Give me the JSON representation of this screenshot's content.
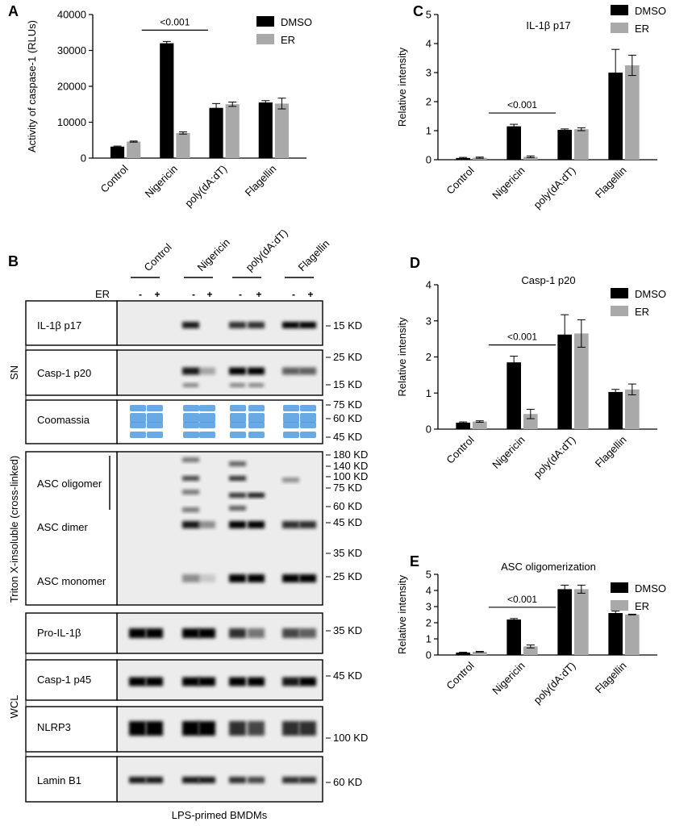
{
  "panel_labels": {
    "A": "A",
    "B": "B",
    "C": "C",
    "D": "D",
    "E": "E"
  },
  "colors": {
    "dmso": "#000000",
    "er": "#a9a9a9",
    "coomassie": "#4f9be0"
  },
  "chart_data": [
    {
      "panel": "A",
      "type": "bar",
      "categories": [
        "Control",
        "Nigericin",
        "poly(dA:dT)",
        "Flagellin"
      ],
      "ylabel": "Activity of caspase-1 (RLUs)",
      "ylim": [
        0,
        40000
      ],
      "yticks": [
        0,
        10000,
        20000,
        30000,
        40000
      ],
      "legend": "top-right",
      "series": [
        {
          "name": "DMSO",
          "values": [
            3200,
            32000,
            14000,
            15500
          ],
          "errors": [
            150,
            500,
            1200,
            500
          ]
        },
        {
          "name": "ER",
          "values": [
            4600,
            7000,
            15000,
            15200
          ],
          "errors": [
            150,
            300,
            600,
            1500
          ]
        }
      ],
      "annotation": {
        "text": "<0.001",
        "category": "Nigericin"
      }
    },
    {
      "panel": "C",
      "type": "bar",
      "title": "IL-1β p17",
      "categories": [
        "Control",
        "Nigericin",
        "poly(dA:dT)",
        "Flagellin"
      ],
      "ylabel": "Relative intensity",
      "ylim": [
        0,
        5
      ],
      "yticks": [
        0,
        1,
        2,
        3,
        4,
        5
      ],
      "legend": "top-right",
      "series": [
        {
          "name": "DMSO",
          "values": [
            0.06,
            1.15,
            1.03,
            3.0
          ],
          "errors": [
            0.02,
            0.07,
            0.03,
            0.8
          ]
        },
        {
          "name": "ER",
          "values": [
            0.07,
            0.1,
            1.05,
            3.25
          ],
          "errors": [
            0.02,
            0.03,
            0.05,
            0.35
          ]
        }
      ],
      "annotation": {
        "text": "<0.001",
        "category": "Nigericin"
      }
    },
    {
      "panel": "D",
      "type": "bar",
      "title": "Casp-1 p20",
      "categories": [
        "Control",
        "Nigericin",
        "poly(dA:dT)",
        "Flagellin"
      ],
      "ylabel": "Relative intensity",
      "ylim": [
        0,
        4
      ],
      "yticks": [
        0,
        1,
        2,
        3,
        4
      ],
      "legend": "top-right",
      "series": [
        {
          "name": "DMSO",
          "values": [
            0.18,
            1.85,
            2.62,
            1.03
          ],
          "errors": [
            0.02,
            0.17,
            0.55,
            0.07
          ]
        },
        {
          "name": "ER",
          "values": [
            0.21,
            0.42,
            2.65,
            1.1
          ],
          "errors": [
            0.02,
            0.13,
            0.38,
            0.15
          ]
        }
      ],
      "annotation": {
        "text": "<0.001",
        "category": "Nigericin"
      }
    },
    {
      "panel": "E",
      "type": "bar",
      "title": "ASC oligomerization",
      "categories": [
        "Control",
        "Nigericin",
        "poly(dA:dT)",
        "Flagellin"
      ],
      "ylabel": "Relative intensity",
      "ylim": [
        0,
        5
      ],
      "yticks": [
        0,
        1,
        2,
        3,
        4,
        5
      ],
      "legend": "top-right",
      "series": [
        {
          "name": "DMSO",
          "values": [
            0.15,
            2.2,
            4.08,
            2.6
          ],
          "errors": [
            0.02,
            0.06,
            0.25,
            0.13
          ]
        },
        {
          "name": "ER",
          "values": [
            0.2,
            0.53,
            4.08,
            2.51
          ],
          "errors": [
            0.02,
            0.09,
            0.25,
            0.02
          ]
        }
      ],
      "annotation": {
        "text": "<0.001",
        "category": "Nigericin"
      }
    }
  ],
  "blot": {
    "groups": [
      "Control",
      "Nigericin",
      "poly(dA:dT)",
      "Flagellin"
    ],
    "er_label": "ER",
    "er_signs": [
      "-",
      "+",
      "-",
      "+",
      "-",
      "+",
      "-",
      "+"
    ],
    "sections": {
      "sn": "SN",
      "triton": "Triton X-insoluble (cross-linked)",
      "wcl": "WCL"
    },
    "bottom_label": "LPS-primed BMDMs",
    "panels": [
      {
        "id": "il1b",
        "labels": [
          "IL-1β p17"
        ],
        "markers": [
          "15 KD"
        ],
        "intensity": [
          0,
          0,
          0.9,
          0,
          0.8,
          0.8,
          1,
          1
        ]
      },
      {
        "id": "casp1p20",
        "labels": [
          "Casp-1 p20"
        ],
        "markers": [
          "25 KD",
          "15 KD"
        ],
        "intensity": [
          0,
          0,
          0.9,
          0.3,
          1,
          1,
          0.6,
          0.6
        ]
      },
      {
        "id": "coomassie",
        "labels": [
          "Coomassia"
        ],
        "markers": [
          "75 KD",
          "60 KD",
          "45 KD"
        ],
        "intensity": [
          1,
          1,
          1,
          1,
          1,
          1,
          1,
          1
        ]
      },
      {
        "id": "asc",
        "labels": [
          "ASC oligomer",
          "ASC dimer",
          "ASC monomer"
        ],
        "markers": [
          "180 KD",
          "140 KD",
          "100 KD",
          "75 KD",
          "60 KD",
          "45 KD",
          "35 KD",
          "25 KD"
        ],
        "dimer": [
          0,
          0,
          0.9,
          0.4,
          1,
          1,
          0.8,
          0.8
        ],
        "monomer": [
          0,
          0,
          0.4,
          0.15,
          1,
          1,
          1,
          1
        ]
      },
      {
        "id": "proil1b",
        "labels": [
          "Pro-IL-1β"
        ],
        "markers": [
          "35 KD"
        ],
        "intensity": [
          1,
          1,
          1,
          1,
          0.8,
          0.5,
          0.7,
          0.6
        ]
      },
      {
        "id": "casp1p45",
        "labels": [
          "Casp-1 p45"
        ],
        "markers": [
          "45 KD"
        ],
        "intensity": [
          1,
          1,
          1,
          1,
          1,
          1,
          0.9,
          1
        ]
      },
      {
        "id": "nlrp3",
        "labels": [
          "NLRP3"
        ],
        "markers": [
          "100 KD"
        ],
        "intensity": [
          1,
          1,
          1,
          1,
          0.8,
          0.7,
          0.8,
          0.8
        ]
      },
      {
        "id": "laminb1",
        "labels": [
          "Lamin B1"
        ],
        "markers": [
          "60 KD"
        ],
        "intensity": [
          0.9,
          0.9,
          0.9,
          0.9,
          0.8,
          0.7,
          0.8,
          0.8
        ]
      }
    ]
  }
}
